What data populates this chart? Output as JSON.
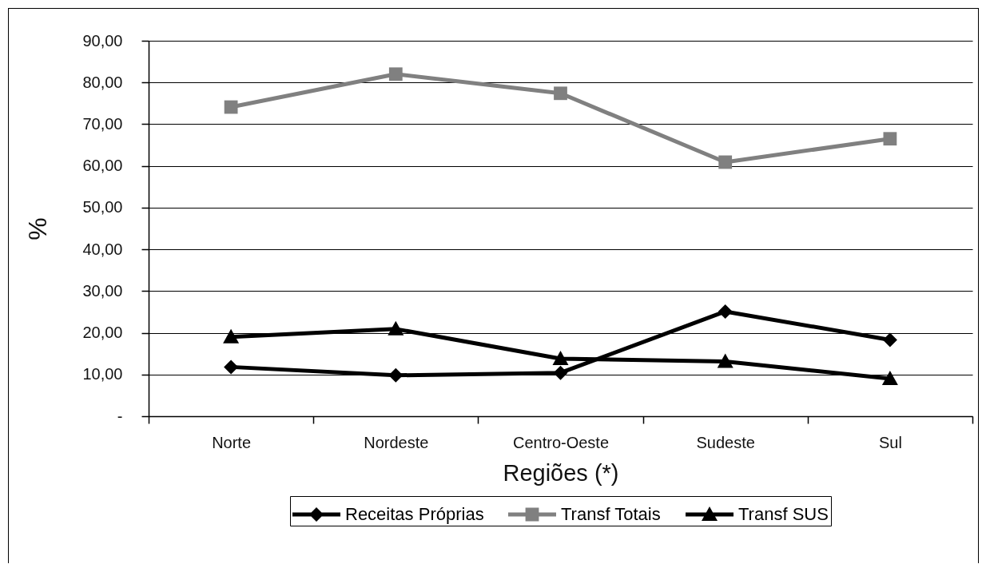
{
  "chart_data": {
    "type": "line",
    "xlabel": "Regiões (*)",
    "ylabel": "%",
    "categories": [
      "Norte",
      "Nordeste",
      "Centro-Oeste",
      "Sudeste",
      "Sul"
    ],
    "series": [
      {
        "name": "Receitas Próprias",
        "color": "#000000",
        "marker": "diamond",
        "values": [
          11.8,
          9.8,
          10.4,
          25.1,
          18.3
        ]
      },
      {
        "name": "Transf Totais",
        "color": "#808080",
        "marker": "square",
        "values": [
          74.1,
          82.0,
          77.4,
          60.9,
          66.5
        ]
      },
      {
        "name": "Transf SUS",
        "color": "#000000",
        "marker": "triangle",
        "values": [
          19.0,
          20.9,
          13.8,
          13.1,
          9.0
        ]
      }
    ],
    "ylim": [
      0,
      90
    ],
    "yticks": [
      {
        "value": 0,
        "label": "-"
      },
      {
        "value": 10,
        "label": "10,00"
      },
      {
        "value": 20,
        "label": "20,00"
      },
      {
        "value": 30,
        "label": "30,00"
      },
      {
        "value": 40,
        "label": "40,00"
      },
      {
        "value": 50,
        "label": "50,00"
      },
      {
        "value": 60,
        "label": "60,00"
      },
      {
        "value": 70,
        "label": "70,00"
      },
      {
        "value": 80,
        "label": "80,00"
      },
      {
        "value": 90,
        "label": "90,00"
      }
    ],
    "grid": "y",
    "legend": "bottom"
  }
}
